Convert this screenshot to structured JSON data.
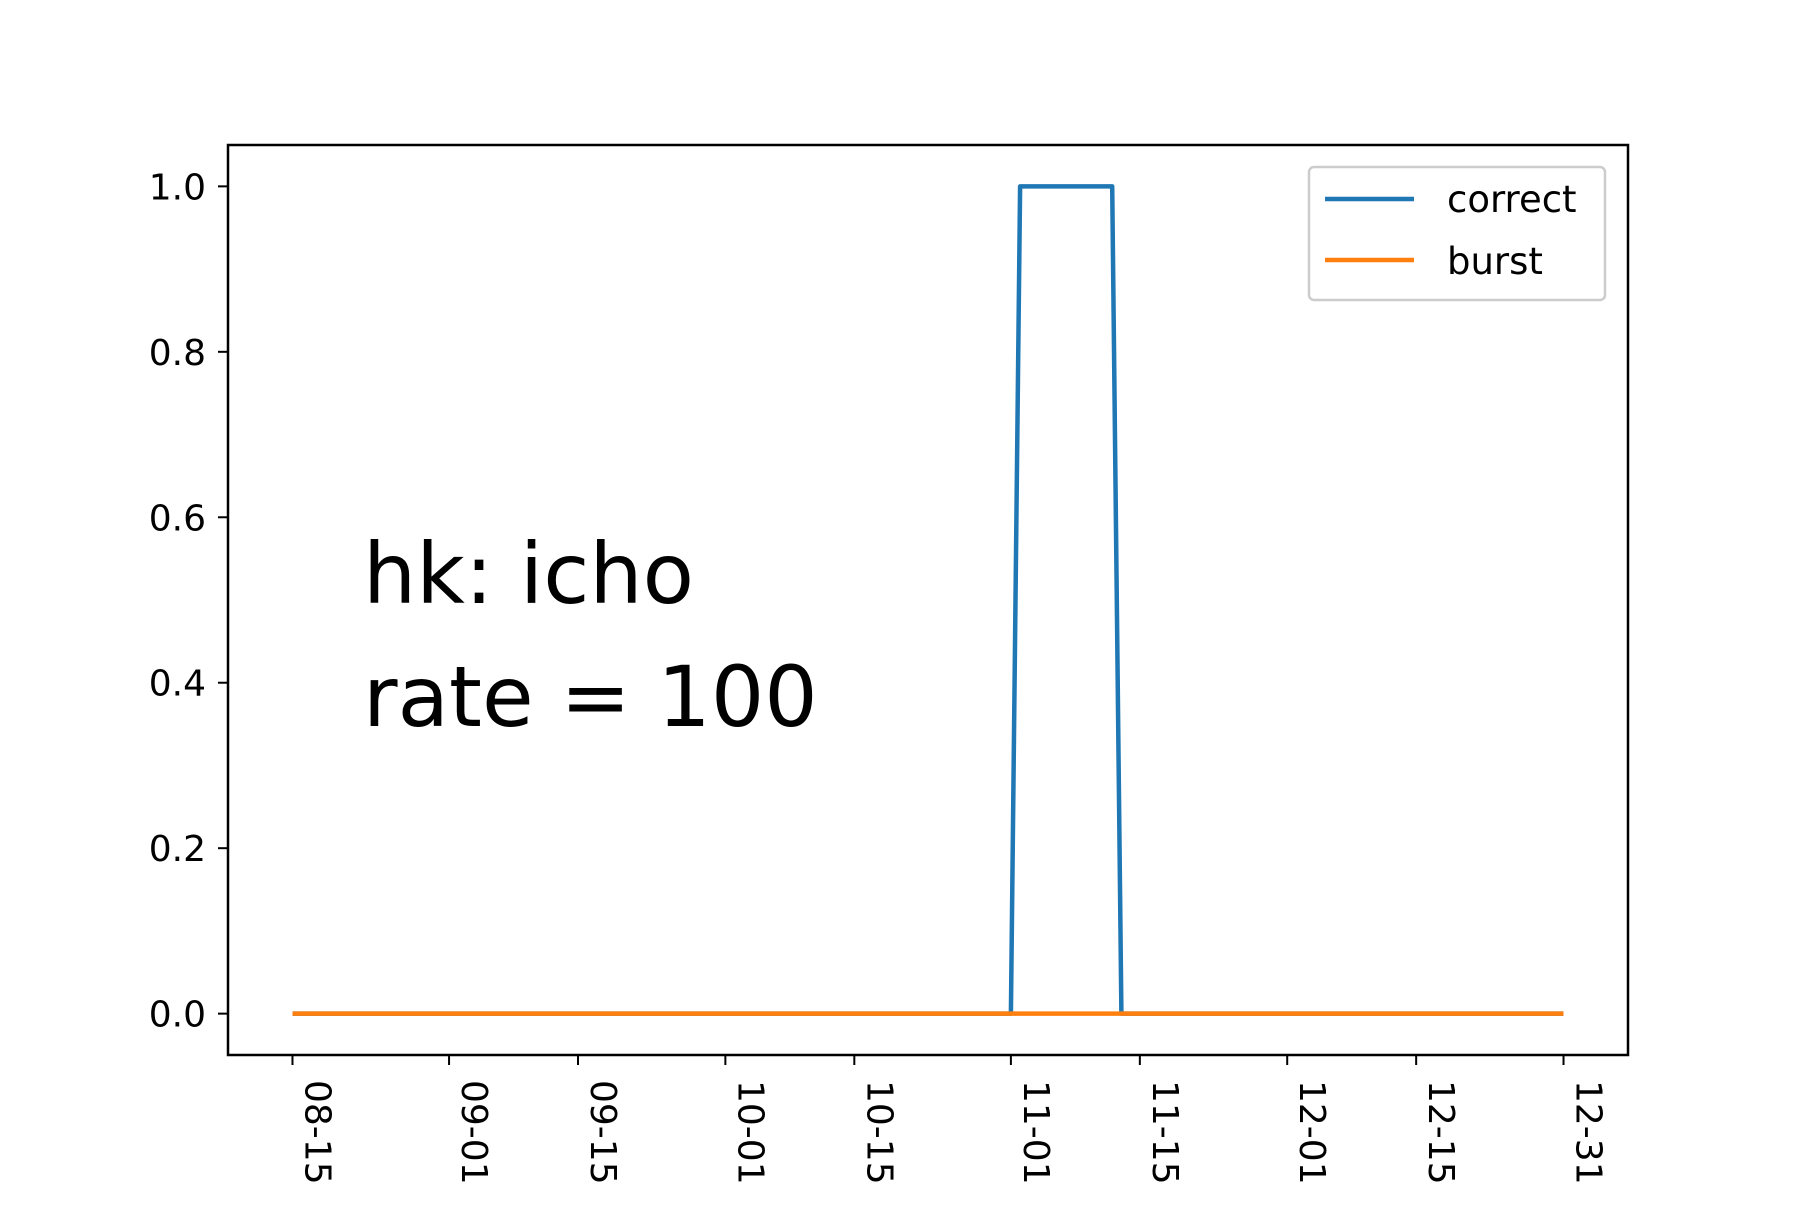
{
  "chart_data": {
    "type": "line",
    "title": "",
    "xlabel": "",
    "ylabel": "",
    "x_axis_type": "date",
    "x_range": [
      "08-08",
      "01-07"
    ],
    "ylim": [
      -0.05,
      1.05
    ],
    "grid": false,
    "legend_position": "top-right",
    "x_ticks": [
      "08-15",
      "09-01",
      "09-15",
      "10-01",
      "10-15",
      "11-01",
      "11-15",
      "12-01",
      "12-15",
      "12-31"
    ],
    "y_ticks": [
      "0.0",
      "0.2",
      "0.4",
      "0.6",
      "0.8",
      "1.0"
    ],
    "annotations": [
      "hk: icho",
      "rate = 100"
    ],
    "series": [
      {
        "name": "correct",
        "color": "#1f77b4",
        "x": [
          "08-15",
          "11-01",
          "11-02",
          "11-12",
          "11-13",
          "12-31"
        ],
        "y": [
          0,
          0,
          1,
          1,
          0,
          0
        ]
      },
      {
        "name": "burst",
        "color": "#ff7f0e",
        "x": [
          "08-15",
          "12-31"
        ],
        "y": [
          0,
          0
        ]
      }
    ]
  }
}
